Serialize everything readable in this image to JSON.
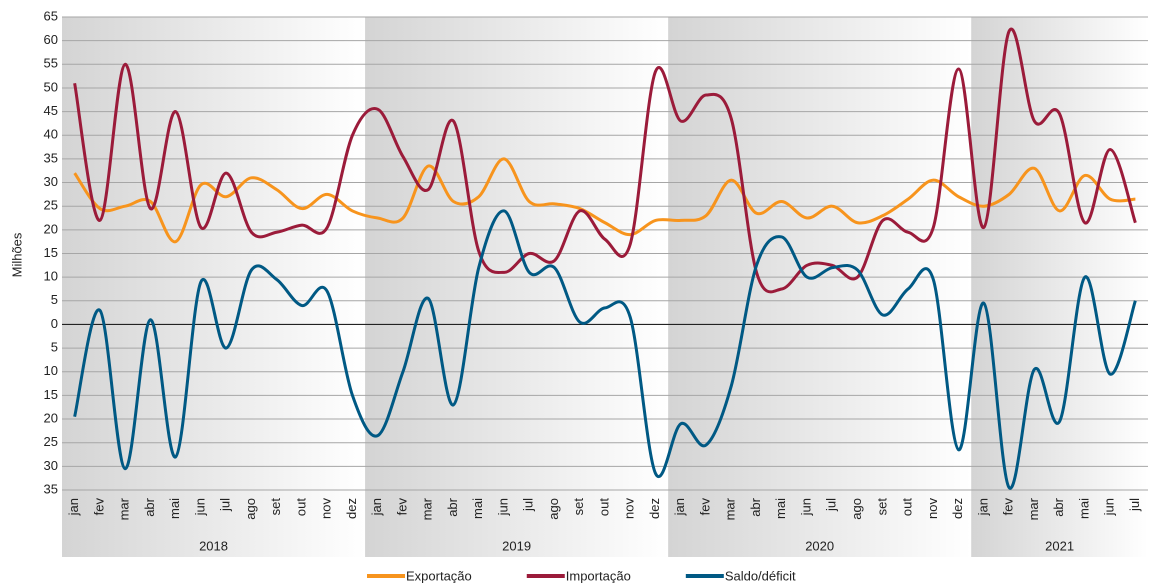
{
  "chart_data": {
    "type": "line",
    "y_label": "Milhões",
    "groups": [
      {
        "name": "2018",
        "categories": [
          "jan",
          "fev",
          "mar",
          "abr",
          "mai",
          "jun",
          "jul",
          "ago",
          "set",
          "out",
          "nov",
          "dez"
        ]
      },
      {
        "name": "2019",
        "categories": [
          "jan",
          "fev",
          "mar",
          "abr",
          "mai",
          "jun",
          "jul",
          "ago",
          "set",
          "out",
          "nov",
          "dez"
        ]
      },
      {
        "name": "2020",
        "categories": [
          "jan",
          "fev",
          "mar",
          "abr",
          "mai",
          "jun",
          "jul",
          "ago",
          "set",
          "out",
          "nov",
          "dez"
        ]
      },
      {
        "name": "2021",
        "categories": [
          "jan",
          "fev",
          "mar",
          "abr",
          "mai",
          "jun",
          "jul"
        ]
      }
    ],
    "series": [
      {
        "name": "Exportação",
        "color": "#f7941d",
        "values": [
          32,
          24.5,
          25,
          26,
          17.5,
          29.5,
          27,
          31,
          28.5,
          24.5,
          27.5,
          24,
          22.5,
          22.5,
          33.5,
          26,
          27,
          35,
          26,
          25.5,
          24.5,
          21.5,
          19,
          22,
          22,
          23,
          30.5,
          23.5,
          26,
          22.5,
          25,
          21.5,
          23,
          26.5,
          30.5,
          27,
          25,
          27.5,
          33,
          24,
          31.5,
          26.5,
          26.5
        ]
      },
      {
        "name": "Importação",
        "color": "#9b1b3a",
        "values": [
          51,
          22,
          55,
          24.5,
          45,
          20.5,
          32,
          19.5,
          19.5,
          21,
          20.5,
          40,
          45.5,
          35.5,
          28.5,
          43,
          15.5,
          11,
          15,
          13.5,
          24,
          18,
          17,
          53.5,
          43,
          48.5,
          43.5,
          11,
          7.5,
          12.5,
          12.5,
          10,
          22,
          19.5,
          20.5,
          54,
          20.5,
          62,
          43,
          44.5,
          21.5,
          37,
          21.5
        ]
      },
      {
        "name": "Saldo/déficit",
        "color": "#005984",
        "values": [
          -19.5,
          3,
          -30.5,
          1,
          -28,
          9,
          -5,
          11.5,
          9.5,
          4,
          7,
          -15,
          -23.5,
          -10,
          5.5,
          -17,
          12,
          24,
          11,
          12,
          0.5,
          3.5,
          1.5,
          -31.5,
          -21,
          -25.5,
          -13,
          12.5,
          18.5,
          10,
          12,
          11.5,
          2,
          7.5,
          9.5,
          -26.5,
          4.5,
          -34.5,
          -9.5,
          -20.5,
          10,
          -10.5,
          5
        ]
      }
    ],
    "ylim": [
      -35,
      65
    ],
    "yticks": [
      65,
      60,
      55,
      50,
      45,
      40,
      35,
      30,
      25,
      20,
      15,
      10,
      5,
      0,
      {
        "value": -5,
        "label": "5"
      },
      {
        "value": -10,
        "label": "10"
      },
      {
        "value": -15,
        "label": "15"
      },
      {
        "value": -20,
        "label": "20"
      },
      {
        "value": -25,
        "label": "25"
      },
      {
        "value": -30,
        "label": "30"
      },
      {
        "value": -35,
        "label": "35"
      }
    ],
    "grid": true,
    "legend": "bottom"
  }
}
